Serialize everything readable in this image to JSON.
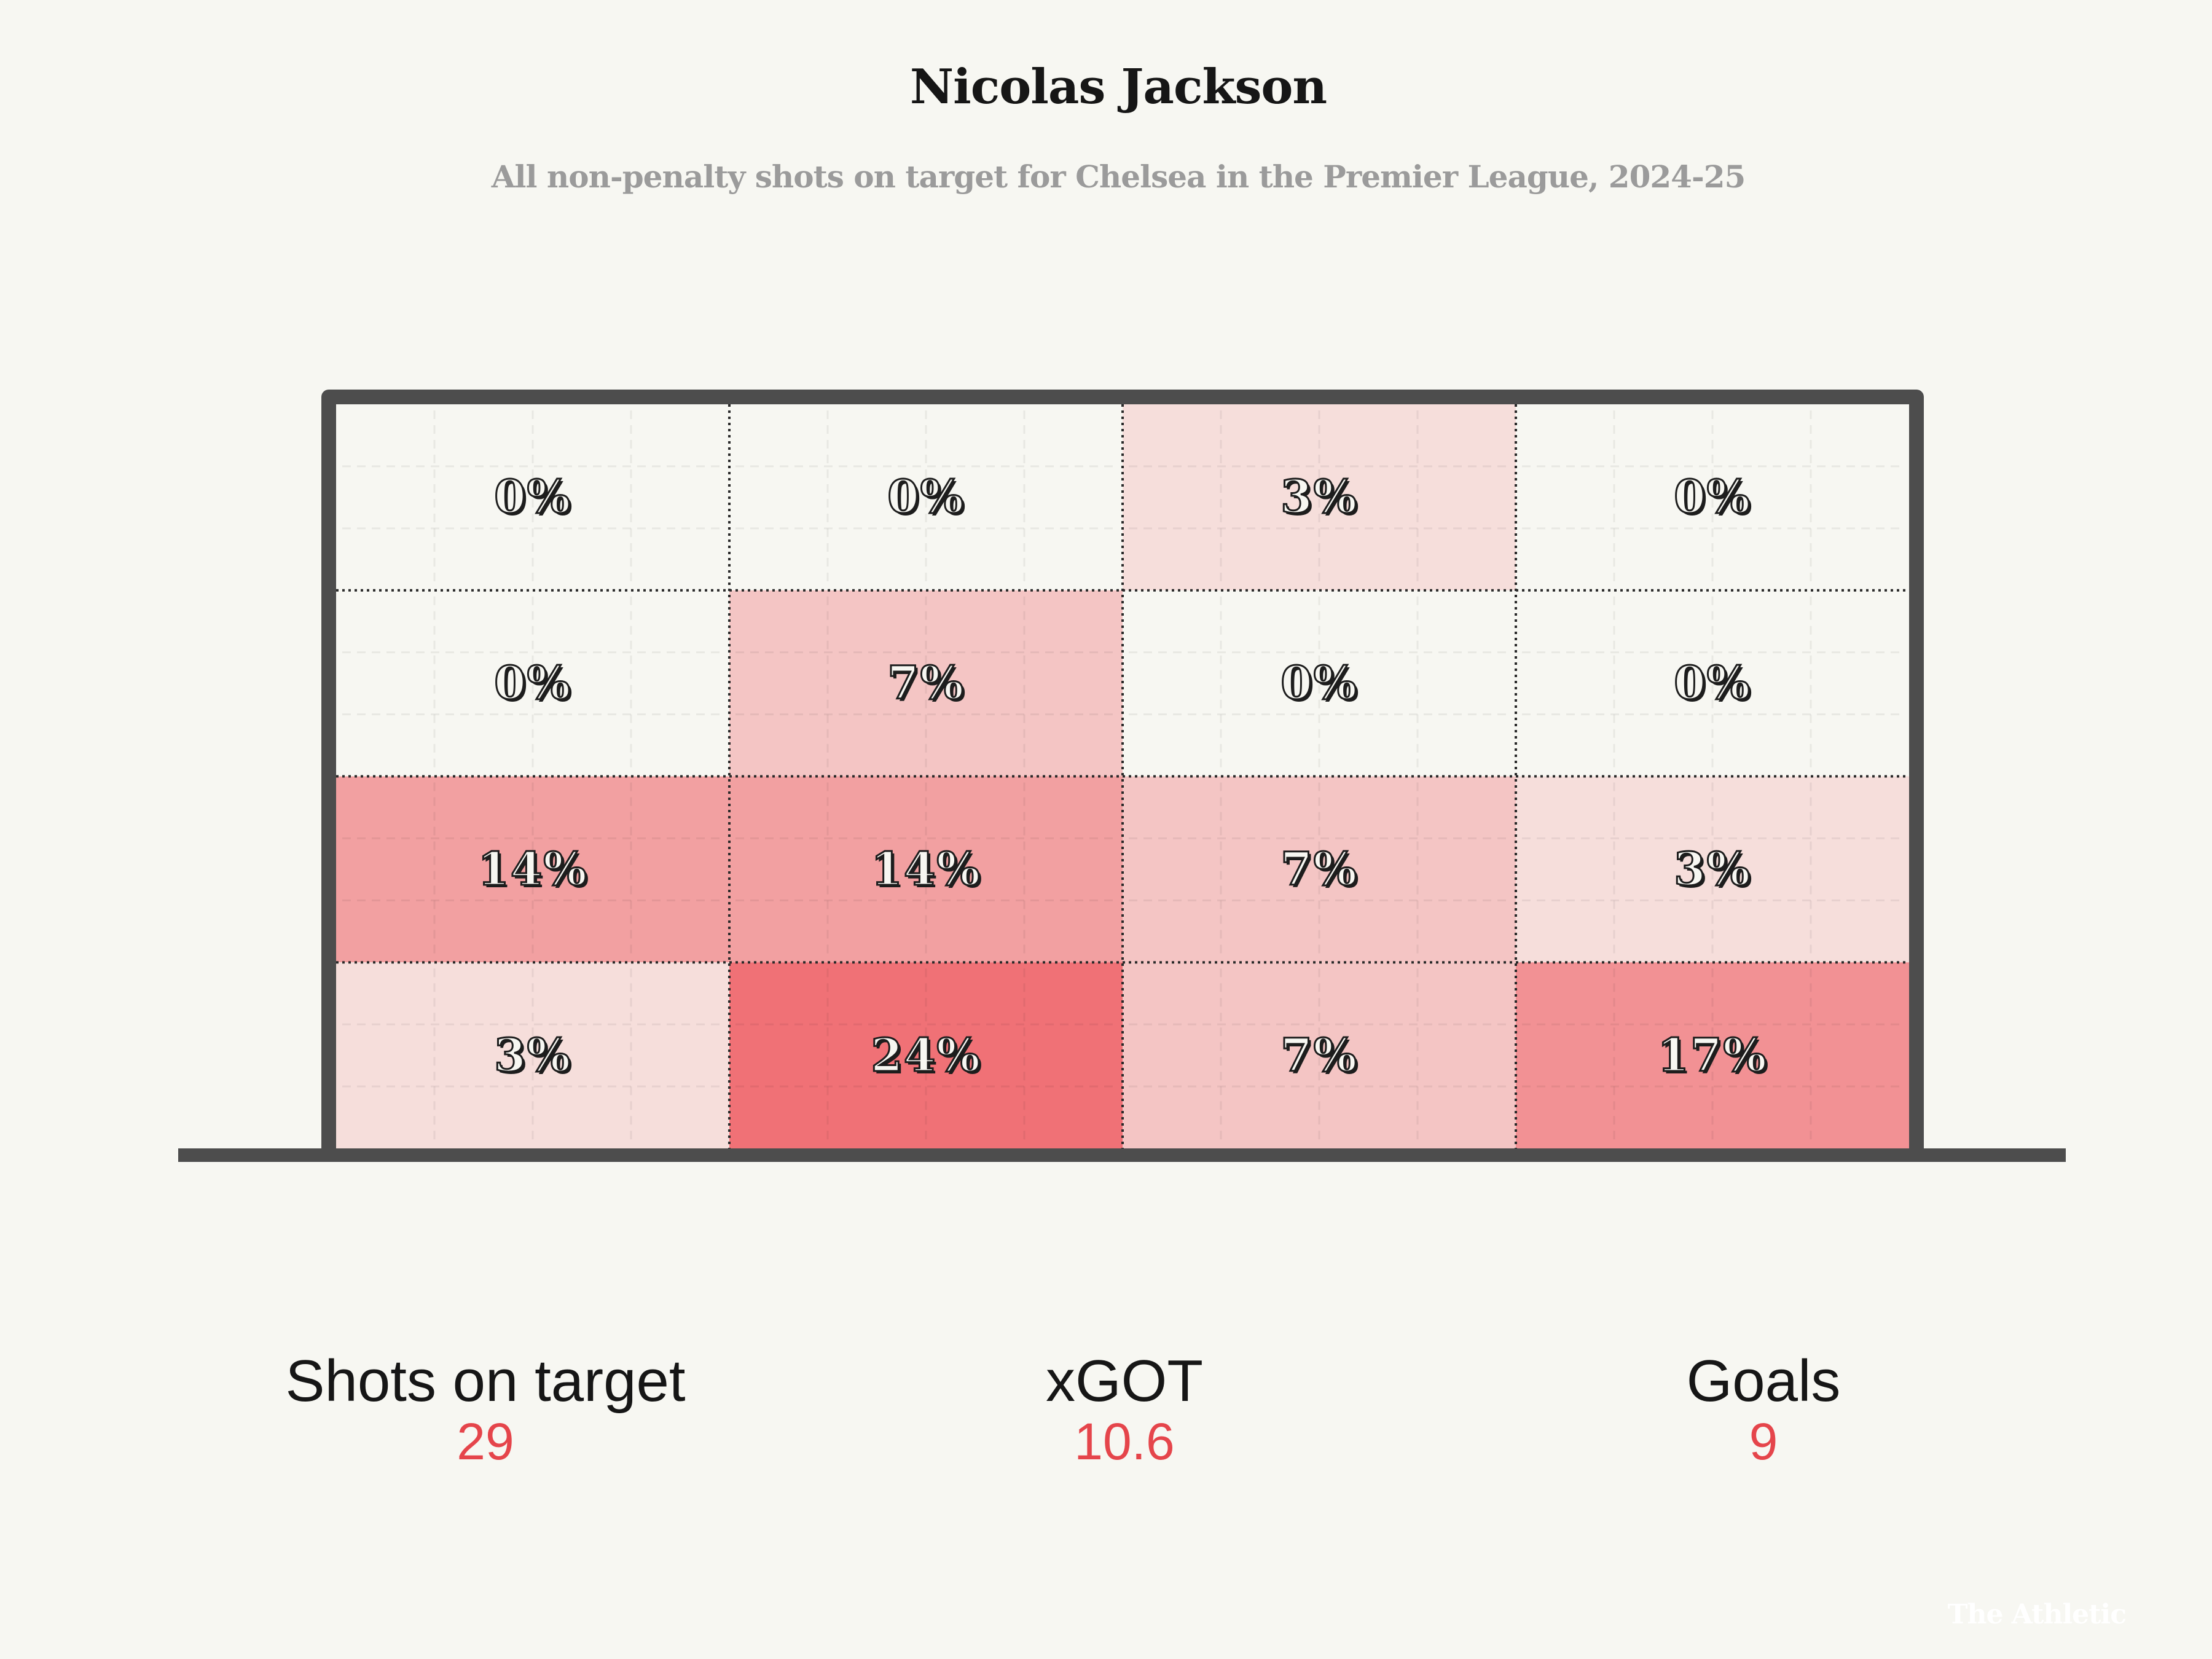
{
  "chart_data": {
    "type": "heatmap",
    "title": "Nicolas Jackson",
    "subtitle": "All non-penalty shots on target for Chelsea in the Premier League, 2024-25",
    "rows": 4,
    "cols": 4,
    "grid_labels": [
      [
        "0%",
        "0%",
        "3%",
        "0%"
      ],
      [
        "0%",
        "7%",
        "0%",
        "0%"
      ],
      [
        "14%",
        "14%",
        "7%",
        "3%"
      ],
      [
        "3%",
        "24%",
        "7%",
        "17%"
      ]
    ],
    "grid_values": [
      [
        0,
        0,
        3,
        0
      ],
      [
        0,
        7,
        0,
        0
      ],
      [
        14,
        14,
        7,
        3
      ],
      [
        3,
        24,
        7,
        17
      ]
    ],
    "value_max": 24,
    "color_low": "#f7f7f2",
    "color_high": "#f07176"
  },
  "stats": [
    {
      "label": "Shots on target",
      "value": "29"
    },
    {
      "label": "xGOT",
      "value": "10.6"
    },
    {
      "label": "Goals",
      "value": "9"
    }
  ],
  "brand": "The Athletic",
  "colors": {
    "frame": "#4d4d4d",
    "accent": "#e5454b",
    "background": "#f7f7f2"
  }
}
